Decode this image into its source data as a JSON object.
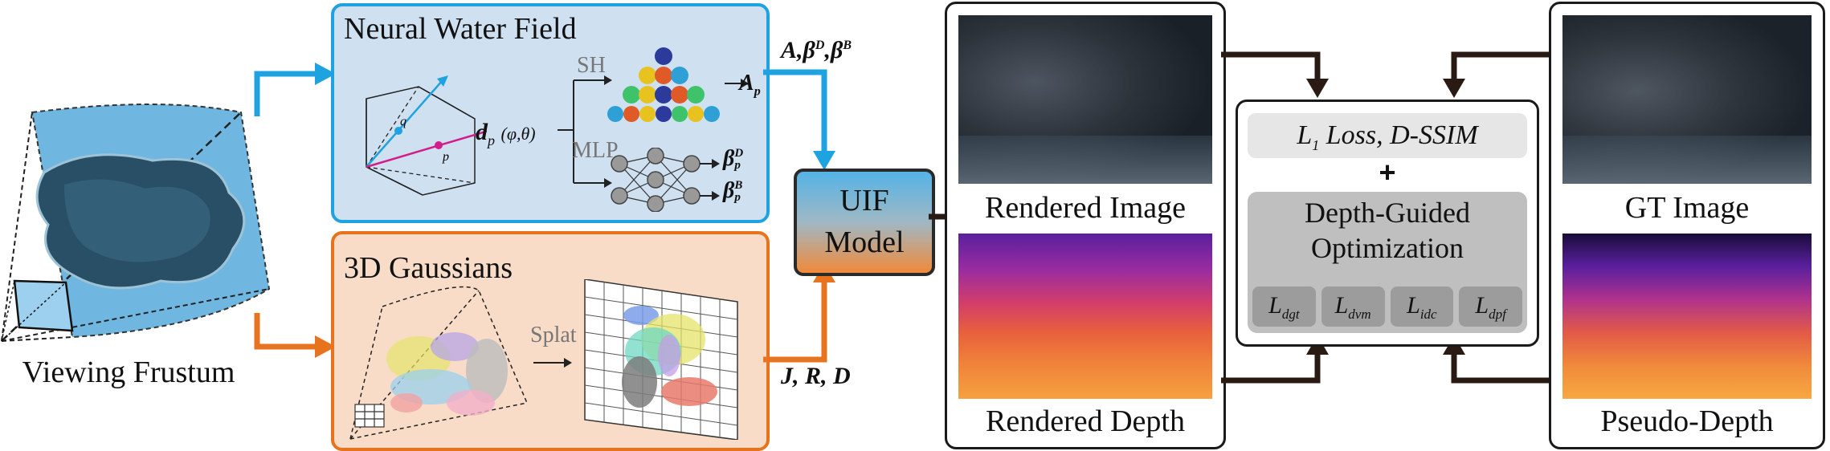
{
  "frustum": {
    "label": "Viewing Frustum"
  },
  "water_field": {
    "title": "Neural Water Field",
    "sh_label": "SH",
    "mlp_label": "MLP",
    "dir_label": "d",
    "dir_sub": "p",
    "dir_args": "(φ,θ)",
    "q_label": "q",
    "p_label": "p",
    "out_A": "A",
    "out_A_sub": "p",
    "out_beta": "β",
    "out_beta_D_sup": "D",
    "out_beta_B_sup": "B",
    "out_beta_sub": "p",
    "params_label": "A,β",
    "params_sup_D": "D",
    "params_sep": ",",
    "params_beta": "β",
    "params_sup_B": "B"
  },
  "gaussians": {
    "title": "3D Gaussians",
    "splat_label": "Splat",
    "params_label": "J, R, D"
  },
  "uif": {
    "line1": "UIF",
    "line2": "Model"
  },
  "rendered": {
    "image_label": "Rendered Image",
    "depth_label": "Rendered Depth"
  },
  "loss": {
    "l1_prefix": "L",
    "l1_sub": "1",
    "l1_suffix": " Loss, D-SSIM",
    "plus": "+",
    "dgo_line1": "Depth-Guided",
    "dgo_line2": "Optimization",
    "terms": [
      {
        "L": "L",
        "sub": "dgt"
      },
      {
        "L": "L",
        "sub": "dvm"
      },
      {
        "L": "L",
        "sub": "idc"
      },
      {
        "L": "L",
        "sub": "dpf"
      }
    ]
  },
  "gt": {
    "image_label": "GT Image",
    "depth_label": "Pseudo-Depth"
  },
  "colors": {
    "blue_border": "#1ea3e0",
    "blue_fill": "#cfe0f0",
    "orange_border": "#e8731e",
    "orange_fill": "#f8dcc8",
    "arrow_blue": "#1ea3e0",
    "arrow_orange": "#e8731e",
    "arrow_black": "#2a1a14"
  }
}
